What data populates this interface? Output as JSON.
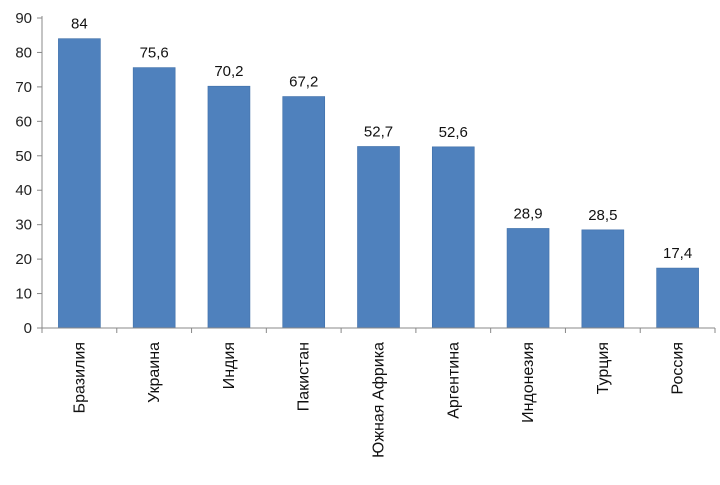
{
  "chart_data": {
    "type": "bar",
    "title": "",
    "xlabel": "",
    "ylabel": "",
    "categories": [
      "Бразилия",
      "Украина",
      "Индия",
      "Пакистан",
      "Южная Африка",
      "Аргентина",
      "Индонезия",
      "Турция",
      "Россия"
    ],
    "values": [
      84,
      75.6,
      70.2,
      67.2,
      52.7,
      52.6,
      28.9,
      28.5,
      17.4
    ],
    "data_labels": [
      "84",
      "75,6",
      "70,2",
      "67,2",
      "52,7",
      "52,6",
      "28,9",
      "28,5",
      "17,4"
    ],
    "ylim": [
      0,
      90
    ],
    "y_ticks": [
      0,
      10,
      20,
      30,
      40,
      50,
      60,
      70,
      80,
      90
    ],
    "grid": false,
    "legend": "none",
    "bar_color": "#4f81bd",
    "bar_edge_color": "#3f6fa8",
    "axis_color": "#888888"
  }
}
